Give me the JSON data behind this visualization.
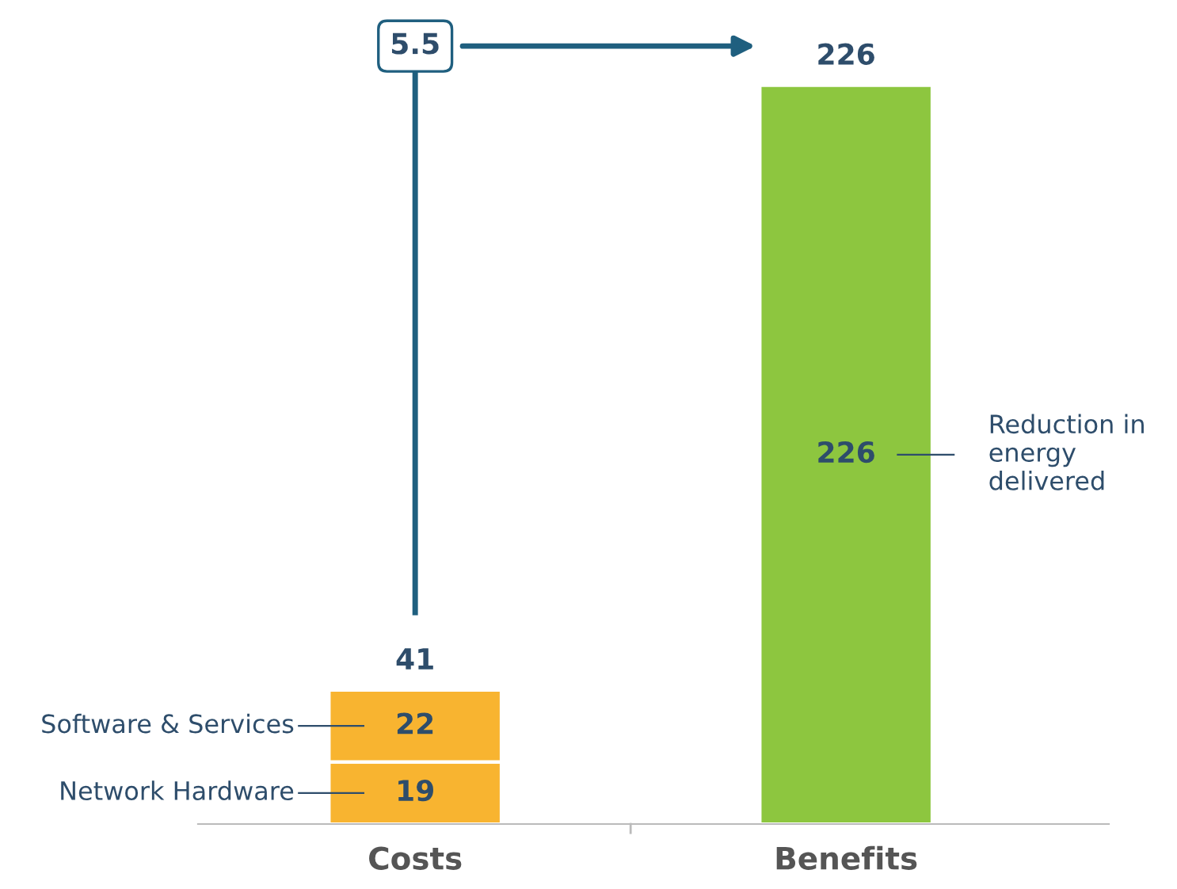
{
  "chart_data": {
    "type": "bar",
    "stacked": true,
    "categories": [
      "Costs",
      "Benefits"
    ],
    "series": [
      {
        "name": "Network Hardware",
        "color": "#f8b430",
        "values": [
          19,
          null
        ]
      },
      {
        "name": "Software & Services",
        "color": "#f8b430",
        "values": [
          22,
          null
        ]
      },
      {
        "name": "Reduction in energy delivered",
        "color": "#8dc63f",
        "values": [
          null,
          226
        ]
      }
    ],
    "data_labels": true,
    "totals": [
      "41",
      "226"
    ],
    "annotations": [
      "5.5"
    ],
    "grid": false
  }
}
